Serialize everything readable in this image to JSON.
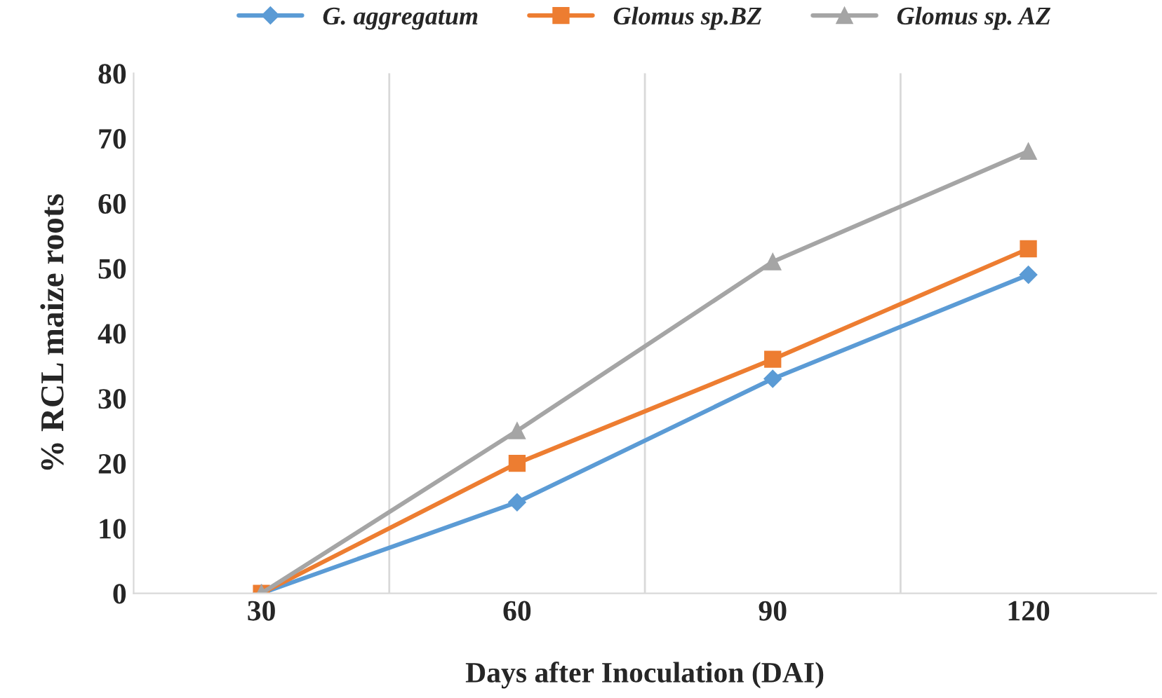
{
  "chart_data": {
    "type": "line",
    "xlabel": "Days after Inoculation (DAI)",
    "ylabel": "% RCL maize roots",
    "categories": [
      "30",
      "60",
      "90",
      "120"
    ],
    "series": [
      {
        "name": "G. aggregatum",
        "color": "#5b9bd5",
        "marker": "diamond",
        "values": [
          0,
          14,
          33,
          49
        ]
      },
      {
        "name": "Glomus sp.BZ",
        "color": "#ed7d31",
        "marker": "square",
        "values": [
          0,
          20,
          36,
          53
        ]
      },
      {
        "name": "Glomus sp. AZ",
        "color": "#a5a5a5",
        "marker": "triangle",
        "values": [
          0,
          25,
          51,
          68
        ]
      }
    ],
    "ylim": [
      0,
      80
    ],
    "yticks": [
      0,
      10,
      20,
      30,
      40,
      50,
      60,
      70,
      80
    ],
    "grid": "x",
    "legend": "top",
    "line_style": "solid"
  }
}
